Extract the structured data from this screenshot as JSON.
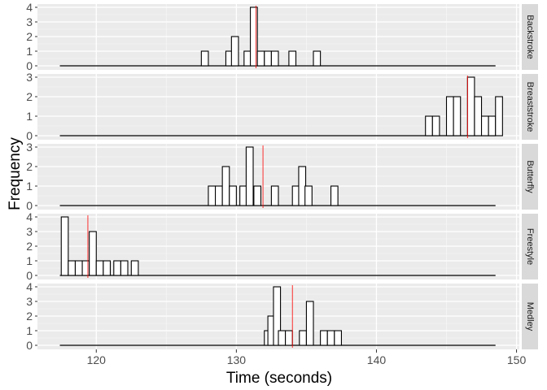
{
  "chart_data": {
    "type": "histogram",
    "xlabel": "Time (seconds)",
    "ylabel": "Frequency",
    "xlim": [
      115.8,
      150.2
    ],
    "x_ticks": [
      120,
      130,
      140,
      150
    ],
    "bin_width": 0.5,
    "baseline_range": [
      117.4,
      148.5
    ],
    "facets": [
      {
        "label": "Backstroke",
        "ylim": [
          0,
          4
        ],
        "y_ticks": [
          0,
          1,
          2,
          3,
          4
        ],
        "mean": 131.4,
        "bins": [
          {
            "x": 127.75,
            "count": 1
          },
          {
            "x": 129.5,
            "count": 1
          },
          {
            "x": 129.9,
            "count": 2
          },
          {
            "x": 130.8,
            "count": 1
          },
          {
            "x": 131.25,
            "count": 4
          },
          {
            "x": 131.75,
            "count": 1
          },
          {
            "x": 132.25,
            "count": 1
          },
          {
            "x": 132.75,
            "count": 1
          },
          {
            "x": 134.0,
            "count": 1
          },
          {
            "x": 135.75,
            "count": 1
          }
        ]
      },
      {
        "label": "Breaststroke",
        "ylim": [
          0,
          3
        ],
        "y_ticks": [
          0,
          1,
          2,
          3
        ],
        "mean": 146.5,
        "bins": [
          {
            "x": 143.75,
            "count": 1
          },
          {
            "x": 144.25,
            "count": 1
          },
          {
            "x": 145.25,
            "count": 2
          },
          {
            "x": 145.75,
            "count": 2
          },
          {
            "x": 146.75,
            "count": 3
          },
          {
            "x": 147.25,
            "count": 2
          },
          {
            "x": 147.75,
            "count": 1
          },
          {
            "x": 148.25,
            "count": 1
          },
          {
            "x": 148.75,
            "count": 2
          }
        ]
      },
      {
        "label": "Butterfly",
        "ylim": [
          0,
          3
        ],
        "y_ticks": [
          0,
          1,
          2,
          3
        ],
        "mean": 131.9,
        "bins": [
          {
            "x": 128.25,
            "count": 1
          },
          {
            "x": 128.75,
            "count": 1
          },
          {
            "x": 129.25,
            "count": 2
          },
          {
            "x": 129.75,
            "count": 1
          },
          {
            "x": 130.5,
            "count": 1
          },
          {
            "x": 130.95,
            "count": 3
          },
          {
            "x": 131.5,
            "count": 1
          },
          {
            "x": 132.75,
            "count": 1
          },
          {
            "x": 134.25,
            "count": 1
          },
          {
            "x": 134.7,
            "count": 2
          },
          {
            "x": 135.15,
            "count": 1
          },
          {
            "x": 137.0,
            "count": 1
          }
        ]
      },
      {
        "label": "Freestyle",
        "ylim": [
          0,
          4
        ],
        "y_ticks": [
          0,
          1,
          2,
          3,
          4
        ],
        "mean": 119.4,
        "bins": [
          {
            "x": 117.75,
            "count": 4
          },
          {
            "x": 118.25,
            "count": 1
          },
          {
            "x": 118.75,
            "count": 1
          },
          {
            "x": 119.25,
            "count": 1
          },
          {
            "x": 119.75,
            "count": 3
          },
          {
            "x": 120.25,
            "count": 1
          },
          {
            "x": 120.75,
            "count": 1
          },
          {
            "x": 121.5,
            "count": 1
          },
          {
            "x": 122.0,
            "count": 1
          },
          {
            "x": 122.75,
            "count": 1
          }
        ]
      },
      {
        "label": "Medley",
        "ylim": [
          0,
          4
        ],
        "y_ticks": [
          0,
          1,
          2,
          3,
          4
        ],
        "mean": 134.0,
        "bins": [
          {
            "x": 132.25,
            "count": 1
          },
          {
            "x": 132.5,
            "count": 2
          },
          {
            "x": 132.9,
            "count": 4
          },
          {
            "x": 133.25,
            "count": 1
          },
          {
            "x": 133.75,
            "count": 1
          },
          {
            "x": 134.75,
            "count": 1
          },
          {
            "x": 135.25,
            "count": 3
          },
          {
            "x": 136.25,
            "count": 1
          },
          {
            "x": 136.75,
            "count": 1
          },
          {
            "x": 137.25,
            "count": 1
          }
        ]
      }
    ]
  },
  "colors": {
    "panel_bg": "#ebebeb",
    "grid_major": "#ffffff",
    "grid_minor": "#f5f5f5",
    "strip_bg": "#d9d9d9",
    "bar_fill": "#ffffff",
    "bar_stroke": "#000000",
    "mean_line": "#ff0000",
    "tick_text": "#4d4d4d"
  }
}
